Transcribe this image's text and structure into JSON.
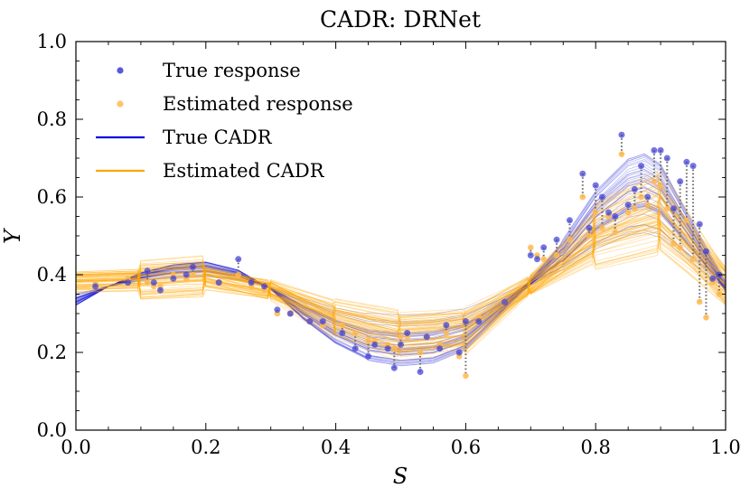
{
  "chart_data": {
    "type": "line",
    "title": "CADR: DRNet",
    "xlabel": "S",
    "ylabel": "Y",
    "xlim": [
      0,
      1
    ],
    "ylim": [
      0,
      1
    ],
    "xticks": [
      "0.0",
      "0.2",
      "0.4",
      "0.6",
      "0.8",
      "1.0"
    ],
    "yticks": [
      "0.0",
      "0.2",
      "0.4",
      "0.6",
      "0.8",
      "1.0"
    ],
    "legend_position": "top-left",
    "legend": [
      {
        "label": "True response",
        "kind": "marker",
        "color": "#3b3bd6"
      },
      {
        "label": "Estimated response",
        "kind": "marker",
        "color": "#ffb84d"
      },
      {
        "label": "True CADR",
        "kind": "line",
        "color": "#0000dd"
      },
      {
        "label": "Estimated CADR",
        "kind": "line",
        "color": "#ffa500"
      }
    ],
    "colors": {
      "true": "#1a1ad6",
      "estimated": "#ffa500",
      "connector": "#666666"
    },
    "true_cadr_base": {
      "x": [
        0.0,
        0.05,
        0.1,
        0.15,
        0.2,
        0.25,
        0.3,
        0.35,
        0.4,
        0.45,
        0.5,
        0.55,
        0.6,
        0.65,
        0.7,
        0.75,
        0.8,
        0.85,
        0.875,
        0.9,
        0.95,
        1.0
      ],
      "y": [
        0.335,
        0.37,
        0.395,
        0.41,
        0.415,
        0.4,
        0.365,
        0.31,
        0.265,
        0.235,
        0.225,
        0.23,
        0.255,
        0.315,
        0.38,
        0.45,
        0.54,
        0.6,
        0.61,
        0.59,
        0.48,
        0.37
      ]
    },
    "estimated_cadr_base": {
      "x": [
        0.0,
        0.1,
        0.2,
        0.3,
        0.4,
        0.5,
        0.6,
        0.7,
        0.8,
        0.9,
        1.0
      ],
      "y": [
        0.38,
        0.385,
        0.395,
        0.36,
        0.285,
        0.24,
        0.255,
        0.375,
        0.5,
        0.56,
        0.37
      ]
    },
    "true_cadr_curve_count": 40,
    "estimated_cadr_curve_count": 60,
    "sample_points": {
      "s": [
        0.03,
        0.08,
        0.11,
        0.12,
        0.13,
        0.15,
        0.17,
        0.18,
        0.22,
        0.25,
        0.27,
        0.29,
        0.31,
        0.33,
        0.36,
        0.38,
        0.41,
        0.43,
        0.45,
        0.46,
        0.48,
        0.49,
        0.5,
        0.51,
        0.53,
        0.54,
        0.56,
        0.57,
        0.59,
        0.6,
        0.62,
        0.66,
        0.7,
        0.71,
        0.72,
        0.74,
        0.76,
        0.78,
        0.79,
        0.8,
        0.81,
        0.82,
        0.83,
        0.84,
        0.85,
        0.86,
        0.87,
        0.88,
        0.89,
        0.9,
        0.91,
        0.92,
        0.93,
        0.94,
        0.95,
        0.96,
        0.97,
        0.98,
        0.99
      ],
      "true_y": [
        0.37,
        0.38,
        0.41,
        0.38,
        0.36,
        0.39,
        0.4,
        0.42,
        0.38,
        0.44,
        0.38,
        0.37,
        0.31,
        0.3,
        0.28,
        0.28,
        0.25,
        0.21,
        0.19,
        0.22,
        0.21,
        0.16,
        0.22,
        0.25,
        0.15,
        0.24,
        0.21,
        0.27,
        0.2,
        0.28,
        0.28,
        0.33,
        0.45,
        0.44,
        0.47,
        0.49,
        0.54,
        0.66,
        0.52,
        0.63,
        0.6,
        0.56,
        0.55,
        0.76,
        0.58,
        0.62,
        0.68,
        0.6,
        0.72,
        0.72,
        0.7,
        0.57,
        0.64,
        0.69,
        0.68,
        0.53,
        0.46,
        0.39,
        0.4
      ],
      "est_y": [
        0.38,
        0.39,
        0.38,
        0.37,
        0.37,
        0.4,
        0.39,
        0.4,
        0.38,
        0.4,
        0.37,
        0.36,
        0.3,
        0.3,
        0.28,
        0.27,
        0.27,
        0.25,
        0.23,
        0.23,
        0.22,
        0.21,
        0.24,
        0.24,
        0.2,
        0.24,
        0.22,
        0.25,
        0.19,
        0.14,
        0.29,
        0.33,
        0.47,
        0.45,
        0.44,
        0.45,
        0.49,
        0.6,
        0.5,
        0.56,
        0.52,
        0.55,
        0.51,
        0.71,
        0.56,
        0.57,
        0.6,
        0.58,
        0.64,
        0.63,
        0.57,
        0.48,
        0.47,
        0.54,
        0.44,
        0.33,
        0.29,
        0.38,
        0.35
      ]
    }
  }
}
